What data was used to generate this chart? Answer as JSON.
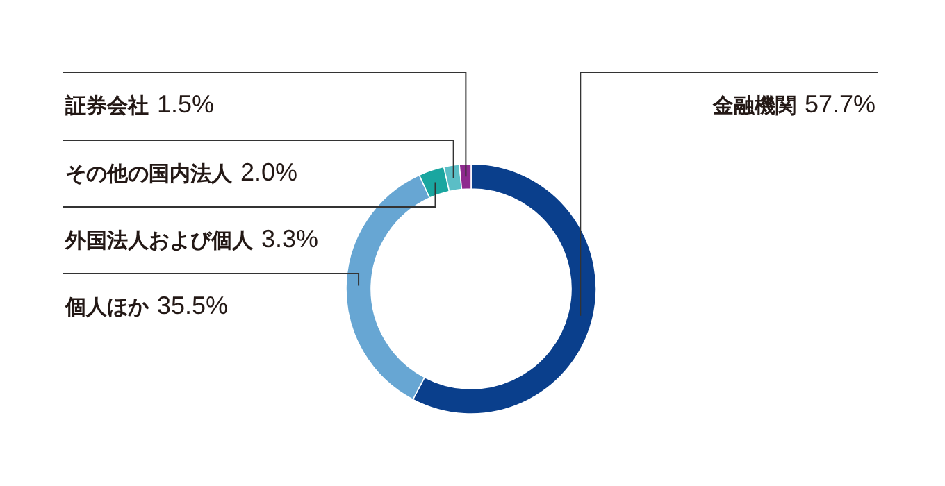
{
  "chart_data": {
    "type": "donut",
    "categories": [
      "金融機関",
      "個人ほか",
      "外国法人および個人",
      "その他の国内法人",
      "証券会社"
    ],
    "values": [
      57.7,
      35.5,
      3.3,
      2.0,
      1.5
    ],
    "value_labels": [
      "57.7%",
      "35.5%",
      "3.3%",
      "2.0%",
      "1.5%"
    ],
    "colors": [
      "#0a3f8c",
      "#67a6d3",
      "#1aa6a0",
      "#5bbec6",
      "#8e2a8e"
    ],
    "legend": false
  }
}
